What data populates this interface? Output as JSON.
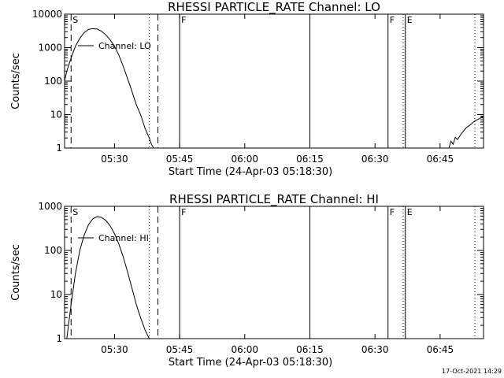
{
  "footer": {
    "timestamp": "17-Oct-2021 14:29"
  },
  "chart_data": [
    {
      "type": "line",
      "title": "RHESSI PARTICLE_RATE Channel: LO",
      "xlabel": "Start Time (24-Apr-03 05:18:30)",
      "ylabel": "Counts/sec",
      "y_scale": "log",
      "ylim": [
        1,
        10000
      ],
      "xlim": [
        "05:18:30",
        "06:55:00"
      ],
      "x_ticks": [
        "05:30",
        "05:45",
        "06:00",
        "06:15",
        "06:30",
        "06:45"
      ],
      "y_ticks": [
        "1",
        "10",
        "100",
        "1000",
        "10000"
      ],
      "legend": "top-left",
      "grid": false,
      "series": [
        {
          "name": "Channel: LO",
          "x": [
            "05:18:30",
            "05:19:00",
            "05:20:00",
            "05:21:00",
            "05:22:00",
            "05:23:00",
            "05:24:00",
            "05:25:00",
            "05:26:00",
            "05:27:00",
            "05:28:00",
            "05:29:00",
            "05:30:00",
            "05:31:00",
            "05:32:00",
            "05:33:00",
            "05:34:00",
            "05:35:00",
            "05:36:00",
            "05:37:00",
            "05:38:00",
            "05:38:30",
            "05:39:00"
          ],
          "values": [
            100,
            200,
            500,
            1100,
            1900,
            2800,
            3500,
            3700,
            3600,
            3100,
            2400,
            1700,
            1100,
            600,
            280,
            120,
            50,
            20,
            10,
            4,
            2,
            1.3,
            1
          ]
        },
        {
          "name": "",
          "x": [
            "06:47:00",
            "06:47:30",
            "06:48:00",
            "06:48:30",
            "06:49:00",
            "06:50:00",
            "06:51:00",
            "06:52:00",
            "06:53:00",
            "06:54:00",
            "06:55:00"
          ],
          "values": [
            1,
            1.6,
            1.3,
            2.1,
            1.8,
            2.8,
            4,
            5,
            6.5,
            7.5,
            9
          ]
        }
      ],
      "markers": [
        {
          "label": "S",
          "time": "05:20:00",
          "style": "dashed"
        },
        {
          "label": "",
          "time": "05:38:00",
          "style": "dotted"
        },
        {
          "label": "",
          "time": "05:40:00",
          "style": "dashed"
        },
        {
          "label": "F",
          "time": "05:45:00",
          "style": "solid"
        },
        {
          "label": "",
          "time": "06:15:00",
          "style": "solid"
        },
        {
          "label": "F",
          "time": "06:33:00",
          "style": "solid"
        },
        {
          "label": "",
          "time": "06:36:30",
          "style": "dotted"
        },
        {
          "label": "E",
          "time": "06:37:00",
          "style": "solid"
        },
        {
          "label": "",
          "time": "06:53:00",
          "style": "dotted"
        }
      ]
    },
    {
      "type": "line",
      "title": "RHESSI PARTICLE_RATE Channel: HI",
      "xlabel": "Start Time (24-Apr-03 05:18:30)",
      "ylabel": "Counts/sec",
      "y_scale": "log",
      "ylim": [
        1,
        1000
      ],
      "xlim": [
        "05:18:30",
        "06:55:00"
      ],
      "x_ticks": [
        "05:30",
        "05:45",
        "06:00",
        "06:15",
        "06:30",
        "06:45"
      ],
      "y_ticks": [
        "1",
        "10",
        "100",
        "1000"
      ],
      "legend": "top-left",
      "grid": false,
      "series": [
        {
          "name": "Channel: HI",
          "x": [
            "05:19:00",
            "05:20:00",
            "05:21:00",
            "05:22:00",
            "05:23:00",
            "05:24:00",
            "05:25:00",
            "05:26:00",
            "05:27:00",
            "05:28:00",
            "05:29:00",
            "05:30:00",
            "05:31:00",
            "05:32:00",
            "05:33:00",
            "05:34:00",
            "05:35:00",
            "05:36:00",
            "05:37:00",
            "05:38:00"
          ],
          "values": [
            1,
            6,
            30,
            100,
            220,
            380,
            520,
            580,
            560,
            480,
            360,
            240,
            140,
            72,
            33,
            14,
            6,
            3,
            1.6,
            1
          ]
        }
      ],
      "markers": [
        {
          "label": "S",
          "time": "05:20:00",
          "style": "dashed"
        },
        {
          "label": "",
          "time": "05:38:00",
          "style": "dotted"
        },
        {
          "label": "",
          "time": "05:40:00",
          "style": "dashed"
        },
        {
          "label": "F",
          "time": "05:45:00",
          "style": "solid"
        },
        {
          "label": "",
          "time": "06:15:00",
          "style": "solid"
        },
        {
          "label": "F",
          "time": "06:33:00",
          "style": "solid"
        },
        {
          "label": "",
          "time": "06:36:30",
          "style": "dotted"
        },
        {
          "label": "E",
          "time": "06:37:00",
          "style": "solid"
        },
        {
          "label": "",
          "time": "06:53:00",
          "style": "dotted"
        }
      ]
    }
  ]
}
